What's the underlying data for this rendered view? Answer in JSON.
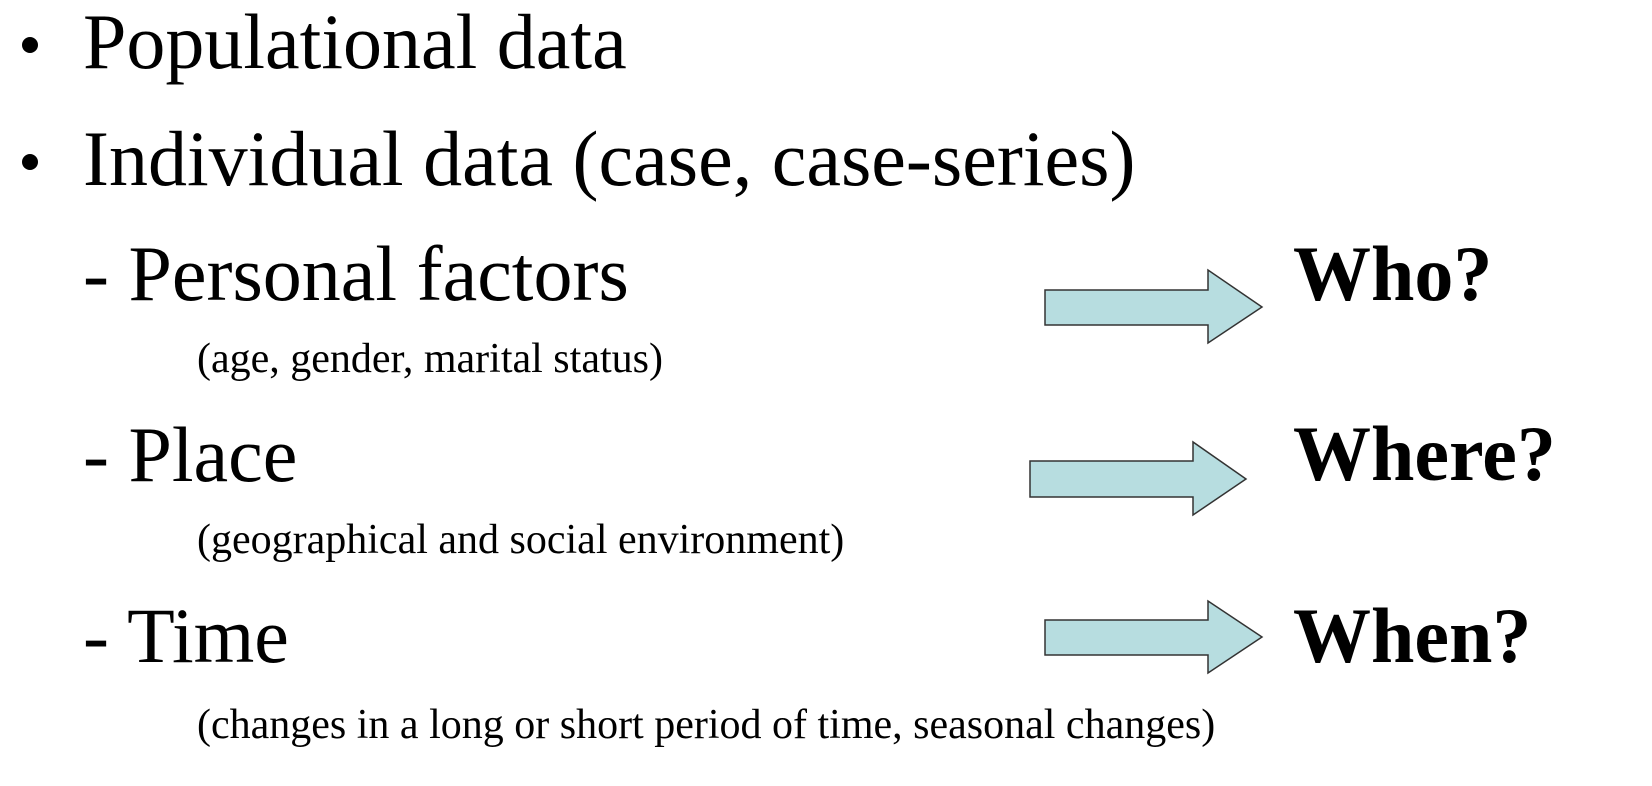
{
  "bullets": [
    "Populational data",
    "Individual data (case, case-series)"
  ],
  "sub_items": [
    {
      "label": "- Personal factors",
      "note": "(age, gender, marital status)",
      "answer": "Who?"
    },
    {
      "label": "- Place",
      "note": "(geographical and social environment)",
      "answer": "Where?"
    },
    {
      "label": "- Time",
      "note": "(changes in a long or short period of time, seasonal changes)",
      "answer": "When?"
    }
  ]
}
